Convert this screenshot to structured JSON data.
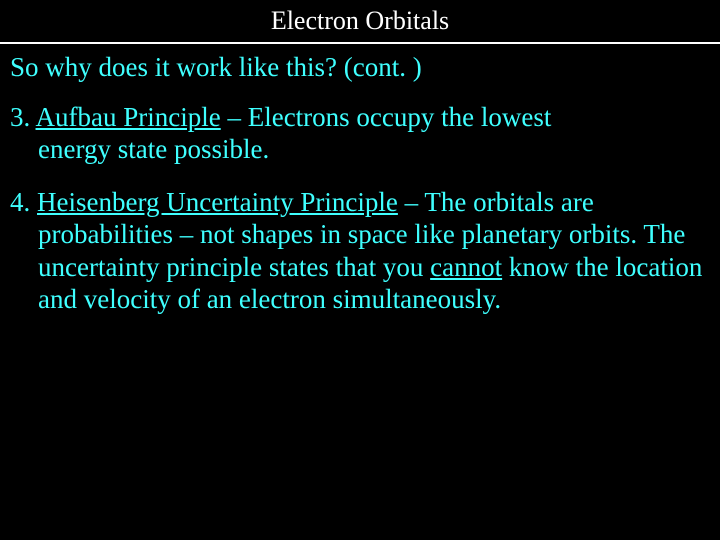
{
  "slide": {
    "title": "Electron Orbitals",
    "subtitle": "So why does it work like this? (cont. )",
    "points": [
      {
        "number": "3. ",
        "underlined": "Aufbau Principle",
        "rest_line1": " – Electrons occupy the lowest",
        "rest_line2": "energy state possible."
      },
      {
        "number": "4. ",
        "underlined": "Heisenberg Uncertainty Principle",
        "rest_line1": " – The orbitals are",
        "rest_line2": "probabilities – not shapes in space like planetary orbits. The uncertainty principle states that you ",
        "underlined2": "cannot",
        "rest_line3": " know the location and velocity of an electron simultaneously."
      }
    ]
  },
  "style": {
    "background_color": "#000000",
    "title_color": "#ffffff",
    "text_color": "#3fffff",
    "divider_color": "#ffffff",
    "title_fontsize": 26,
    "body_fontsize": 27,
    "font_family": "Times New Roman"
  }
}
